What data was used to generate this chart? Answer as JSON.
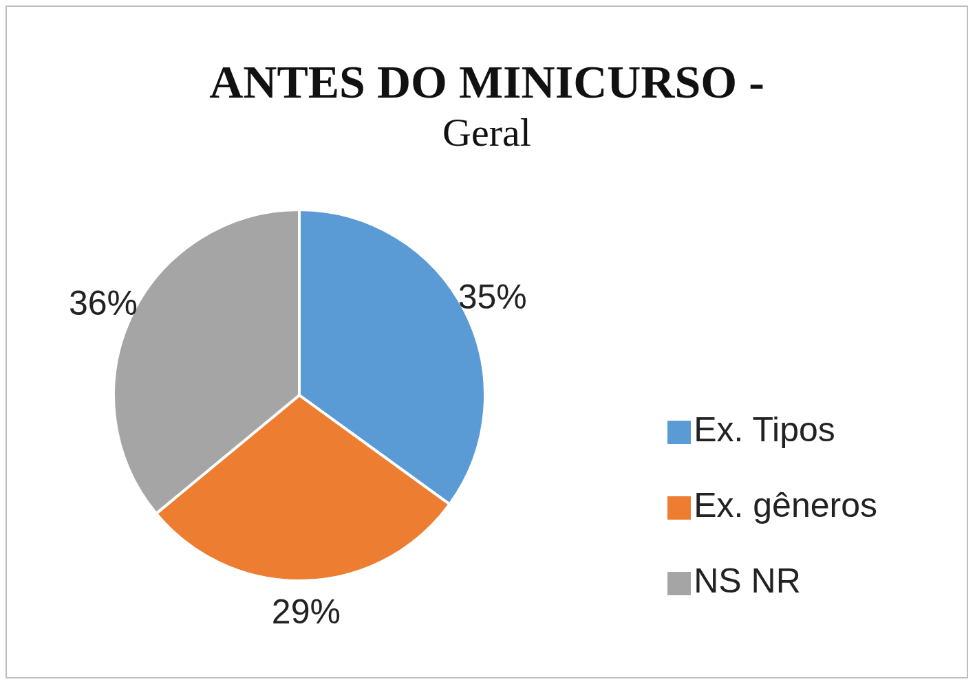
{
  "chart_data": {
    "type": "pie",
    "title": "ANTES DO MINICURSO -",
    "subtitle": "Geral",
    "categories": [
      "Ex. Tipos",
      "Ex. gêneros",
      "NS NR"
    ],
    "values": [
      35,
      29,
      36
    ],
    "value_labels": [
      "35%",
      "29%",
      "36%"
    ],
    "colors": [
      "#5b9bd5",
      "#ed7d31",
      "#a5a5a5"
    ],
    "legend": "right"
  }
}
